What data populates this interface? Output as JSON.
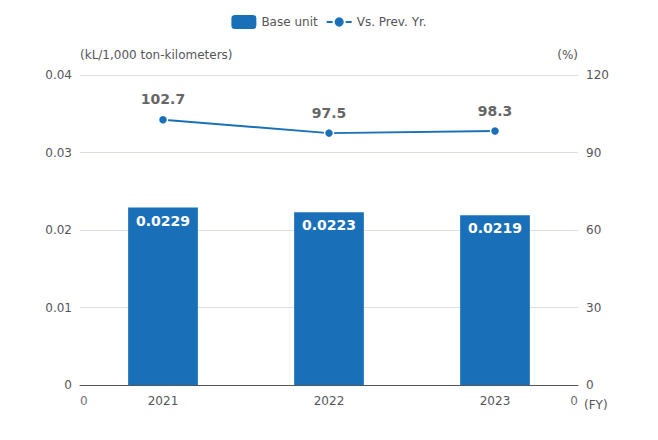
{
  "chart_data": {
    "type": "bar",
    "categories": [
      "2021",
      "2022",
      "2023"
    ],
    "xlabel": "(FY)",
    "ylabel": "(kL/1,000 ton-kilometers)",
    "y2label": "(%)",
    "series": [
      {
        "name": "Base unit",
        "type": "bar",
        "color": "#1a70b8",
        "values": [
          0.0229,
          0.0223,
          0.0219
        ]
      },
      {
        "name": "Vs. Prev. Yr.",
        "type": "line",
        "axis": "y2",
        "color": "#1a70b8",
        "marker": "circle",
        "values": [
          102.7,
          97.5,
          98.3
        ]
      }
    ],
    "ylim": [
      0,
      0.04
    ],
    "yticks": [
      0,
      0.01,
      0.02,
      0.03,
      0.04
    ],
    "y2lim": [
      0,
      120
    ],
    "y2ticks": [
      0,
      30,
      60,
      90,
      120
    ],
    "grid": true,
    "legend": "top",
    "data_labels": true,
    "annotations": [
      "0",
      "0"
    ]
  }
}
